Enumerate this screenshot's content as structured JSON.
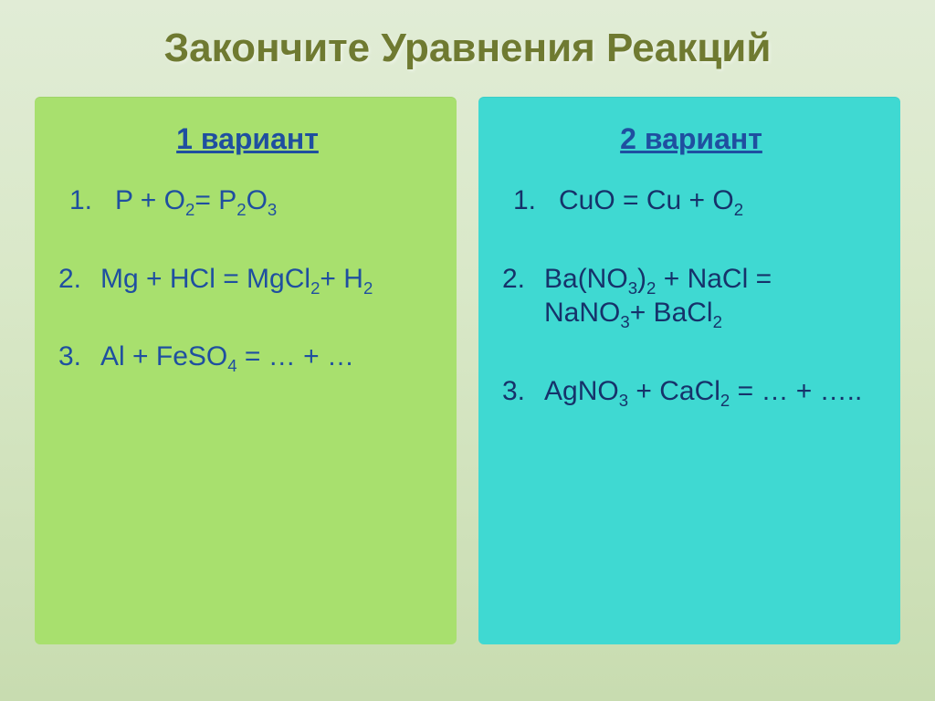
{
  "title": {
    "text": "Закончите Уравнения Реакций",
    "color": "#6f7a31",
    "fontsize": 44
  },
  "background_gradient": [
    "#e1ecd6",
    "#d9e8c8",
    "#c8dcb0"
  ],
  "panels": {
    "left": {
      "bg_color": "#a8e06e",
      "heading": "1 вариант",
      "heading_color": "#1f4fa0",
      "text_color": "#1f4fa0",
      "equations": [
        {
          "num": "1.",
          "html": "P + O<sub>2</sub>= P<sub>2</sub>O<sub>3</sub>",
          "first": true
        },
        {
          "num": "2.",
          "html": "Mg + HCl = MgCl<sub>2</sub>+ H<sub>2</sub>"
        },
        {
          "num": "3.",
          "html": "Al + FeSO<sub>4</sub> = … + …"
        }
      ]
    },
    "right": {
      "bg_color": "#3fd9d2",
      "heading": "2 вариант",
      "heading_color": "#1f4fa0",
      "text_color": "#16326a",
      "equations": [
        {
          "num": "1.",
          "html": "CuO = Cu + O<sub>2</sub>",
          "first": true
        },
        {
          "num": "2.",
          "html": "Ba(NO<sub>3</sub>)<sub>2</sub> + NaCl = NaNO<sub>3</sub>+ BaCl<sub>2</sub>"
        },
        {
          "num": "3.",
          "html": "AgNO<sub>3</sub> + CaCl<sub>2</sub> = … + ….."
        }
      ]
    }
  },
  "eq_fontsize": 30,
  "variant_fontsize": 32
}
